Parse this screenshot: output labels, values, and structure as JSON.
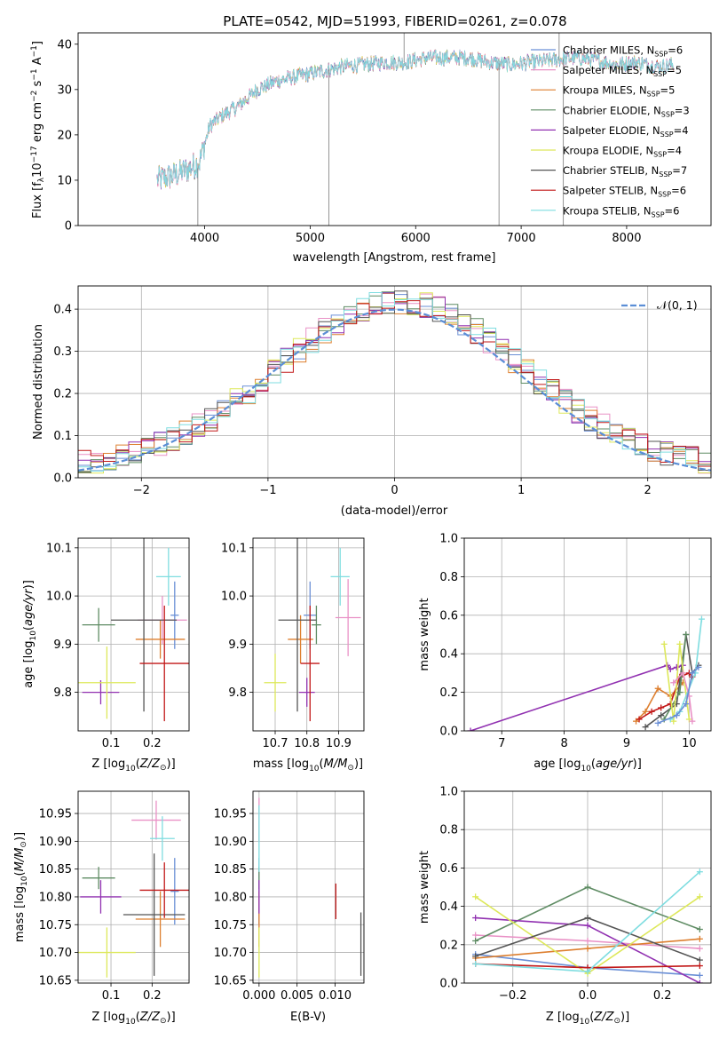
{
  "suptitle": "PLATE=0542, MJD=51993, FIBERID=0261, z=0.078",
  "colors": {
    "Chabrier MILES": "#6a8fd6",
    "Salpeter MILES": "#e991c6",
    "Kroupa MILES": "#dd7f2f",
    "Chabrier ELODIE": "#5f8c64",
    "Salpeter ELODIE": "#9131b1",
    "Kroupa ELODIE": "#dde85a",
    "Chabrier STELIB": "#555555",
    "Salpeter STELIB": "#c21818",
    "Kroupa STELIB": "#7fdde0",
    "normal": "#5b8ed6"
  },
  "chart_data": [
    {
      "id": "spectrum",
      "type": "line",
      "xlabel": "wavelength [Angstrom, rest frame]",
      "ylabel_main": "Flux [f",
      "ylabel_rest": "10",
      "ylabel_units": "erg cm",
      "xlim": [
        2800,
        8800
      ],
      "ylim": [
        0,
        42.5
      ],
      "xticks": [
        "4000",
        "5000",
        "6000",
        "7000",
        "8000"
      ],
      "yticks": [
        "0",
        "10",
        "20",
        "30",
        "40"
      ],
      "legend_location": "top-right",
      "legend": [
        {
          "name": "Chabrier MILES",
          "n": "6"
        },
        {
          "name": "Salpeter MILES",
          "n": "5"
        },
        {
          "name": "Kroupa MILES",
          "n": "5"
        },
        {
          "name": "Chabrier ELODIE",
          "n": "3"
        },
        {
          "name": "Salpeter ELODIE",
          "n": "4"
        },
        {
          "name": "Kroupa ELODIE",
          "n": "4"
        },
        {
          "name": "Chabrier STELIB",
          "n": "7"
        },
        {
          "name": "Salpeter STELIB",
          "n": "6"
        },
        {
          "name": "Kroupa STELIB",
          "n": "6"
        }
      ],
      "continuum": [
        [
          3550,
          10
        ],
        [
          3700,
          11
        ],
        [
          3850,
          12.5
        ],
        [
          3950,
          14
        ],
        [
          4050,
          22
        ],
        [
          4150,
          24
        ],
        [
          4300,
          26
        ],
        [
          4500,
          30
        ],
        [
          4700,
          32
        ],
        [
          4900,
          33
        ],
        [
          5100,
          34
        ],
        [
          5300,
          35
        ],
        [
          5500,
          35.5
        ],
        [
          5700,
          36
        ],
        [
          5900,
          36
        ],
        [
          6100,
          37
        ],
        [
          6300,
          37
        ],
        [
          6500,
          37
        ],
        [
          6700,
          36
        ],
        [
          6900,
          35.5
        ],
        [
          7100,
          36
        ],
        [
          7300,
          36.5
        ],
        [
          7500,
          37
        ],
        [
          7700,
          36.5
        ],
        [
          7900,
          35.5
        ],
        [
          8100,
          36
        ],
        [
          8300,
          35
        ],
        [
          8450,
          35.5
        ]
      ],
      "spikes": [
        [
          3935,
          0
        ],
        [
          5177,
          0
        ],
        [
          5890,
          42.5
        ],
        [
          6790,
          0
        ],
        [
          7360,
          42.5
        ],
        [
          7400,
          0
        ]
      ]
    },
    {
      "id": "residuals",
      "type": "histogram",
      "xlabel": "(data-model)/error",
      "ylabel": "Normed distribution",
      "xlim": [
        -2.5,
        2.5
      ],
      "ylim": [
        0,
        0.455
      ],
      "xticks": [
        "−2",
        "−1",
        "0",
        "1",
        "2"
      ],
      "yticks": [
        "0.0",
        "0.1",
        "0.2",
        "0.3",
        "0.4"
      ],
      "legend_label": "𝒩(0, 1)",
      "legend_location": "top-right",
      "bin_width": 0.1
    },
    {
      "id": "age_vs_Z",
      "type": "errorbar",
      "xlabel": "Z [log",
      "ylabel": "age  [log",
      "xlim": [
        0.02,
        0.29
      ],
      "ylim": [
        9.72,
        10.12
      ],
      "xticks": [
        "0.1",
        "0.2"
      ],
      "yticks": [
        "9.8",
        "9.9",
        "10.0",
        "10.1"
      ],
      "points": [
        {
          "library": "Chabrier MILES",
          "x": 0.255,
          "y": 9.96,
          "xerr": 0.01,
          "yerr": 0.07
        },
        {
          "library": "Salpeter MILES",
          "x": 0.225,
          "y": 9.95,
          "xerr": 0.06,
          "yerr": 0.05
        },
        {
          "library": "Kroupa MILES",
          "x": 0.22,
          "y": 9.91,
          "xerr": 0.06,
          "yerr": 0.04
        },
        {
          "library": "Chabrier ELODIE",
          "x": 0.07,
          "y": 9.94,
          "xerr": 0.04,
          "yerr": 0.035
        },
        {
          "library": "Salpeter ELODIE",
          "x": 0.075,
          "y": 9.8,
          "xerr": 0.045,
          "yerr": 0.025
        },
        {
          "library": "Kroupa ELODIE",
          "x": 0.09,
          "y": 9.82,
          "xerr": 0.07,
          "yerr": 0.075
        },
        {
          "library": "Chabrier STELIB",
          "x": 0.18,
          "y": 9.95,
          "xerr": 0.08,
          "yerr": 0.19
        },
        {
          "library": "Salpeter STELIB",
          "x": 0.23,
          "y": 9.86,
          "xerr": 0.06,
          "yerr": 0.12
        },
        {
          "library": "Kroupa STELIB",
          "x": 0.24,
          "y": 10.04,
          "xerr": 0.03,
          "yerr": 0.06
        }
      ]
    },
    {
      "id": "age_vs_mass",
      "type": "errorbar",
      "xlabel": "mass [log",
      "xlim": [
        10.63,
        10.98
      ],
      "ylim": [
        9.72,
        10.12
      ],
      "xticks": [
        "10.7",
        "10.8",
        "10.9"
      ],
      "yticks": [
        "9.8",
        "9.9",
        "10.0",
        "10.1"
      ],
      "points": [
        {
          "library": "Chabrier MILES",
          "x": 10.81,
          "y": 9.96,
          "xerr": 0.02,
          "yerr": 0.07
        },
        {
          "library": "Salpeter MILES",
          "x": 10.93,
          "y": 9.955,
          "xerr": 0.04,
          "yerr": 0.08
        },
        {
          "library": "Kroupa MILES",
          "x": 10.78,
          "y": 9.91,
          "xerr": 0.04,
          "yerr": 0.05
        },
        {
          "library": "Chabrier ELODIE",
          "x": 10.83,
          "y": 9.94,
          "xerr": 0.015,
          "yerr": 0.04
        },
        {
          "library": "Salpeter ELODIE",
          "x": 10.8,
          "y": 9.8,
          "xerr": 0.025,
          "yerr": 0.03
        },
        {
          "library": "Kroupa ELODIE",
          "x": 10.7,
          "y": 9.82,
          "xerr": 0.035,
          "yerr": 0.06
        },
        {
          "library": "Chabrier STELIB",
          "x": 10.77,
          "y": 9.95,
          "xerr": 0.06,
          "yerr": 0.19
        },
        {
          "library": "Salpeter STELIB",
          "x": 10.81,
          "y": 9.86,
          "xerr": 0.03,
          "yerr": 0.12
        },
        {
          "library": "Kroupa STELIB",
          "x": 10.905,
          "y": 10.04,
          "xerr": 0.03,
          "yerr": 0.06
        }
      ]
    },
    {
      "id": "massweight_vs_age",
      "type": "line",
      "xlabel": "age  [log",
      "ylabel": "mass weight",
      "xlim": [
        6.4,
        10.35
      ],
      "ylim": [
        0,
        1.0
      ],
      "xticks": [
        "7",
        "8",
        "9",
        "10"
      ],
      "yticks": [
        "0.0",
        "0.2",
        "0.4",
        "0.6",
        "0.8",
        "1.0"
      ],
      "series": [
        {
          "library": "Salpeter ELODIE",
          "x": [
            6.5,
            9.65,
            9.7,
            9.8,
            9.9
          ],
          "y": [
            0.0,
            0.34,
            0.32,
            0.33,
            0.34
          ]
        },
        {
          "library": "Kroupa MILES",
          "x": [
            9.15,
            9.3,
            9.5,
            9.7,
            9.9
          ],
          "y": [
            0.05,
            0.1,
            0.22,
            0.18,
            0.25
          ]
        },
        {
          "library": "Salpeter STELIB",
          "x": [
            9.2,
            9.4,
            9.55,
            9.7,
            9.85,
            10.0,
            10.05
          ],
          "y": [
            0.06,
            0.1,
            0.12,
            0.14,
            0.28,
            0.3,
            0.28
          ]
        },
        {
          "library": "Chabrier STELIB",
          "x": [
            9.3,
            9.55,
            9.8,
            9.95,
            10.05,
            10.15
          ],
          "y": [
            0.02,
            0.08,
            0.14,
            0.5,
            0.3,
            0.34
          ]
        },
        {
          "library": "Chabrier ELODIE",
          "x": [
            9.6,
            9.85,
            9.95
          ],
          "y": [
            0.06,
            0.2,
            0.5
          ]
        },
        {
          "library": "Kroupa ELODIE",
          "x": [
            9.6,
            9.75,
            9.85,
            10.0
          ],
          "y": [
            0.45,
            0.05,
            0.45,
            0.06
          ]
        },
        {
          "library": "Kroupa STELIB",
          "x": [
            9.7,
            9.85,
            10.1,
            10.2
          ],
          "y": [
            0.06,
            0.1,
            0.3,
            0.58
          ]
        },
        {
          "library": "Salpeter MILES",
          "x": [
            9.75,
            9.9,
            10.0,
            10.05
          ],
          "y": [
            0.25,
            0.3,
            0.18,
            0.05
          ]
        },
        {
          "library": "Chabrier MILES",
          "x": [
            9.5,
            9.8,
            9.95,
            10.05,
            10.15
          ],
          "y": [
            0.04,
            0.08,
            0.14,
            0.3,
            0.33
          ]
        }
      ]
    },
    {
      "id": "mass_vs_Z",
      "type": "errorbar",
      "xlabel": "Z [log",
      "ylabel": "mass [log",
      "xlim": [
        0.02,
        0.29
      ],
      "ylim": [
        10.645,
        10.99
      ],
      "xticks": [
        "0.1",
        "0.2"
      ],
      "yticks": [
        "10.65",
        "10.70",
        "10.75",
        "10.80",
        "10.85",
        "10.90",
        "10.95"
      ],
      "points": [
        {
          "library": "Chabrier MILES",
          "x": 0.255,
          "y": 10.81,
          "xerr": 0.01,
          "yerr": 0.06
        },
        {
          "library": "Salpeter MILES",
          "x": 0.21,
          "y": 10.938,
          "xerr": 0.06,
          "yerr": 0.035
        },
        {
          "library": "Kroupa MILES",
          "x": 0.22,
          "y": 10.76,
          "xerr": 0.06,
          "yerr": 0.05
        },
        {
          "library": "Chabrier ELODIE",
          "x": 0.07,
          "y": 10.834,
          "xerr": 0.04,
          "yerr": 0.02
        },
        {
          "library": "Salpeter ELODIE",
          "x": 0.075,
          "y": 10.8,
          "xerr": 0.05,
          "yerr": 0.03
        },
        {
          "library": "Kroupa ELODIE",
          "x": 0.09,
          "y": 10.7,
          "xerr": 0.07,
          "yerr": 0.045
        },
        {
          "library": "Chabrier STELIB",
          "x": 0.205,
          "y": 10.768,
          "xerr": 0.075,
          "yerr": 0.11
        },
        {
          "library": "Salpeter STELIB",
          "x": 0.23,
          "y": 10.812,
          "xerr": 0.06,
          "yerr": 0.05
        },
        {
          "library": "Kroupa STELIB",
          "x": 0.225,
          "y": 10.905,
          "xerr": 0.03,
          "yerr": 0.04
        }
      ]
    },
    {
      "id": "mass_vs_ebv",
      "type": "errorbar",
      "xlabel": "E(B-V)",
      "xlim": [
        -0.0008,
        0.0138
      ],
      "ylim": [
        10.645,
        10.99
      ],
      "xticks": [
        "0.000",
        "0.005",
        "0.010"
      ],
      "yticks": [
        "10.65",
        "10.70",
        "10.75",
        "10.80",
        "10.85",
        "10.90",
        "10.95"
      ],
      "points": [
        {
          "library": "Chabrier MILES",
          "x": 0.0,
          "y": 10.81,
          "xerr": 0,
          "yerr": 0.06
        },
        {
          "library": "Salpeter MILES",
          "x": 0.0,
          "y": 10.938,
          "xerr": 0,
          "yerr": 0.04
        },
        {
          "library": "Kroupa MILES",
          "x": 0.0,
          "y": 10.76,
          "xerr": 0,
          "yerr": 0.05
        },
        {
          "library": "Chabrier ELODIE",
          "x": 0.0,
          "y": 10.834,
          "xerr": 0,
          "yerr": 0.02
        },
        {
          "library": "Salpeter ELODIE",
          "x": 0.0,
          "y": 10.8,
          "xerr": 0,
          "yerr": 0.03
        },
        {
          "library": "Kroupa ELODIE",
          "x": 0.0,
          "y": 10.7,
          "xerr": 0,
          "yerr": 0.045
        },
        {
          "library": "Chabrier STELIB",
          "x": 0.0134,
          "y": 10.715,
          "xerr": 0,
          "yerr": 0.057
        },
        {
          "library": "Salpeter STELIB",
          "x": 0.0101,
          "y": 10.792,
          "xerr": 0,
          "yerr": 0.032
        },
        {
          "library": "Kroupa STELIB",
          "x": 0.0,
          "y": 10.905,
          "xerr": 0,
          "yerr": 0.06
        }
      ]
    },
    {
      "id": "massweight_vs_Z",
      "type": "line",
      "xlabel": "Z [log",
      "ylabel": "mass weight",
      "xlim": [
        -0.33,
        0.33
      ],
      "ylim": [
        0,
        1.0
      ],
      "xticks": [
        "−0.2",
        "0.0",
        "0.2"
      ],
      "yticks": [
        "0.0",
        "0.2",
        "0.4",
        "0.6",
        "0.8",
        "1.0"
      ],
      "series": [
        {
          "library": "Chabrier MILES",
          "x": [
            -0.3,
            0.0,
            0.3
          ],
          "y": [
            0.15,
            0.08,
            0.04
          ]
        },
        {
          "library": "Salpeter MILES",
          "x": [
            -0.3,
            0.0,
            0.3
          ],
          "y": [
            0.25,
            0.22,
            0.18
          ]
        },
        {
          "library": "Kroupa MILES",
          "x": [
            -0.3,
            0.0,
            0.3
          ],
          "y": [
            0.13,
            0.18,
            0.23
          ]
        },
        {
          "library": "Chabrier ELODIE",
          "x": [
            -0.3,
            0.0,
            0.3
          ],
          "y": [
            0.22,
            0.5,
            0.28
          ]
        },
        {
          "library": "Salpeter ELODIE",
          "x": [
            -0.3,
            0.0,
            0.3
          ],
          "y": [
            0.34,
            0.3,
            0.0
          ]
        },
        {
          "library": "Kroupa ELODIE",
          "x": [
            -0.3,
            0.0,
            0.3
          ],
          "y": [
            0.45,
            0.05,
            0.45
          ]
        },
        {
          "library": "Chabrier STELIB",
          "x": [
            -0.3,
            0.0,
            0.3
          ],
          "y": [
            0.14,
            0.34,
            0.12
          ]
        },
        {
          "library": "Salpeter STELIB",
          "x": [
            -0.3,
            0.0,
            0.3
          ],
          "y": [
            0.1,
            0.08,
            0.09
          ]
        },
        {
          "library": "Kroupa STELIB",
          "x": [
            -0.3,
            0.0,
            0.3
          ],
          "y": [
            0.1,
            0.06,
            0.58
          ]
        }
      ]
    }
  ]
}
